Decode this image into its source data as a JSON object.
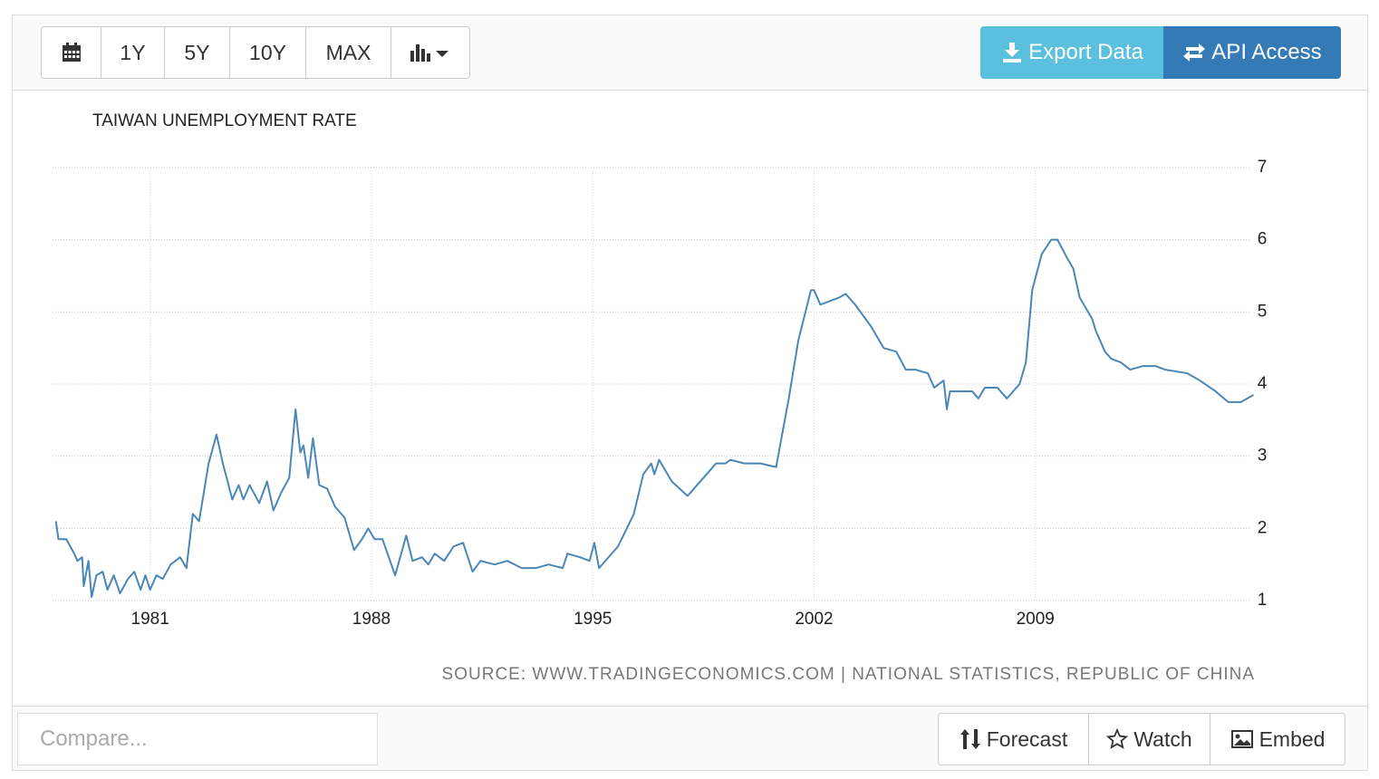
{
  "toolbar": {
    "ranges": [
      "1Y",
      "5Y",
      "10Y",
      "MAX"
    ],
    "export": "Export Data",
    "api": "API Access"
  },
  "footer": {
    "compare_placeholder": "Compare...",
    "buttons": [
      "Forecast",
      "Watch",
      "Embed"
    ]
  },
  "chart_data": {
    "type": "line",
    "title": "TAIWAN UNEMPLOYMENT RATE",
    "source": "SOURCE: WWW.TRADINGECONOMICS.COM | NATIONAL STATISTICS, REPUBLIC OF CHINA",
    "color": "#4a86b8",
    "grid": true,
    "xlim": [
      1978,
      2016
    ],
    "ylim": [
      1,
      7
    ],
    "xticks": [
      1981,
      1988,
      1995,
      2002,
      2009
    ],
    "yticks": [
      1,
      2,
      3,
      4,
      5,
      6,
      7
    ],
    "x": [
      1978.02,
      1978.1,
      1978.35,
      1978.6,
      1978.7,
      1978.85,
      1978.9,
      1979.05,
      1979.15,
      1979.3,
      1979.5,
      1979.65,
      1979.85,
      1980.05,
      1980.3,
      1980.5,
      1980.7,
      1980.85,
      1981.0,
      1981.2,
      1981.4,
      1981.65,
      1981.95,
      1982.15,
      1982.35,
      1982.55,
      1982.85,
      1983.1,
      1983.3,
      1983.6,
      1983.8,
      1983.95,
      1984.15,
      1984.45,
      1984.7,
      1984.9,
      1985.15,
      1985.4,
      1985.6,
      1985.75,
      1985.85,
      1986.0,
      1986.15,
      1986.35,
      1986.6,
      1986.85,
      1987.15,
      1987.45,
      1987.7,
      1987.9,
      1988.1,
      1988.35,
      1988.55,
      1988.75,
      1989.1,
      1989.3,
      1989.6,
      1989.8,
      1990.0,
      1990.3,
      1990.6,
      1990.9,
      1991.2,
      1991.45,
      1991.9,
      1992.3,
      1992.75,
      1993.2,
      1993.6,
      1994.05,
      1994.2,
      1994.6,
      1994.9,
      1995.05,
      1995.2,
      1995.8,
      1996.3,
      1996.6,
      1996.85,
      1996.95,
      1997.1,
      1997.5,
      1998.0,
      1998.5,
      1998.9,
      1999.2,
      1999.35,
      1999.8,
      2000.3,
      2000.8,
      2001.2,
      2001.5,
      2001.9,
      2002.0,
      2002.2,
      2002.8,
      2003.0,
      2003.3,
      2003.8,
      2004.2,
      2004.6,
      2004.9,
      2005.2,
      2005.6,
      2005.8,
      2006.1,
      2006.2,
      2006.3,
      2006.7,
      2007.0,
      2007.2,
      2007.4,
      2007.8,
      2008.1,
      2008.5,
      2008.7,
      2008.9,
      2009.2,
      2009.5,
      2009.7,
      2010.0,
      2010.2,
      2010.4,
      2010.8,
      2010.9,
      2011.2,
      2011.4,
      2011.7,
      2012.0,
      2012.4,
      2012.8,
      2013.1,
      2013.8,
      2014.2,
      2014.7,
      2015.1,
      2015.5,
      2015.7,
      2015.9
    ],
    "values": [
      2.1,
      1.85,
      1.85,
      1.65,
      1.55,
      1.6,
      1.2,
      1.55,
      1.05,
      1.35,
      1.4,
      1.15,
      1.35,
      1.1,
      1.3,
      1.4,
      1.15,
      1.35,
      1.15,
      1.35,
      1.3,
      1.5,
      1.6,
      1.45,
      2.2,
      2.1,
      2.9,
      3.3,
      2.9,
      2.4,
      2.6,
      2.4,
      2.6,
      2.35,
      2.65,
      2.25,
      2.5,
      2.7,
      3.65,
      3.05,
      3.15,
      2.7,
      3.25,
      2.6,
      2.55,
      2.3,
      2.15,
      1.7,
      1.85,
      2.0,
      1.85,
      1.85,
      1.6,
      1.35,
      1.9,
      1.55,
      1.6,
      1.5,
      1.65,
      1.55,
      1.75,
      1.8,
      1.4,
      1.55,
      1.5,
      1.55,
      1.45,
      1.45,
      1.5,
      1.45,
      1.65,
      1.6,
      1.55,
      1.8,
      1.45,
      1.75,
      2.2,
      2.75,
      2.9,
      2.75,
      2.95,
      2.65,
      2.45,
      2.7,
      2.9,
      2.9,
      2.95,
      2.9,
      2.9,
      2.85,
      3.8,
      4.6,
      5.3,
      5.3,
      5.1,
      5.2,
      5.25,
      5.1,
      4.8,
      4.5,
      4.45,
      4.2,
      4.2,
      4.15,
      3.95,
      4.05,
      3.65,
      3.9,
      3.9,
      3.9,
      3.8,
      3.95,
      3.95,
      3.8,
      4.0,
      4.3,
      5.3,
      5.8,
      6.0,
      6.0,
      5.75,
      5.6,
      5.2,
      4.9,
      4.75,
      4.45,
      4.35,
      4.3,
      4.2,
      4.25,
      4.25,
      4.2,
      4.15,
      4.05,
      3.9,
      3.75,
      3.75,
      3.8,
      3.85
    ]
  }
}
